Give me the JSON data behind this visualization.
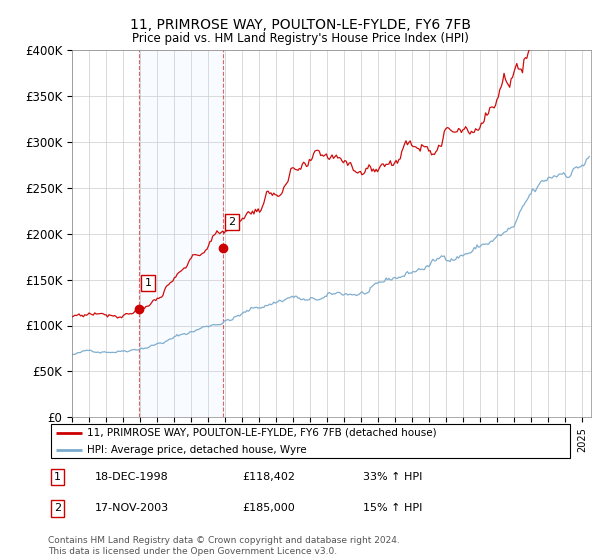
{
  "title": "11, PRIMROSE WAY, POULTON-LE-FYLDE, FY6 7FB",
  "subtitle": "Price paid vs. HM Land Registry's House Price Index (HPI)",
  "ylim": [
    0,
    400000
  ],
  "xlim_start": 1995.0,
  "xlim_end": 2025.5,
  "legend_line1": "11, PRIMROSE WAY, POULTON-LE-FYLDE, FY6 7FB (detached house)",
  "legend_line2": "HPI: Average price, detached house, Wyre",
  "sale1_date": "18-DEC-1998",
  "sale1_price": "£118,402",
  "sale1_hpi": "33% ↑ HPI",
  "sale2_date": "17-NOV-2003",
  "sale2_price": "£185,000",
  "sale2_hpi": "15% ↑ HPI",
  "footnote": "Contains HM Land Registry data © Crown copyright and database right 2024.\nThis data is licensed under the Open Government Licence v3.0.",
  "sale1_year": 1998.96,
  "sale1_value": 118402,
  "sale2_year": 2003.88,
  "sale2_value": 185000,
  "line_color_red": "#cc0000",
  "line_color_blue": "#7aaacc",
  "background_color": "#ffffff",
  "grid_color": "#cccccc",
  "shade_color": "#ddeeff"
}
